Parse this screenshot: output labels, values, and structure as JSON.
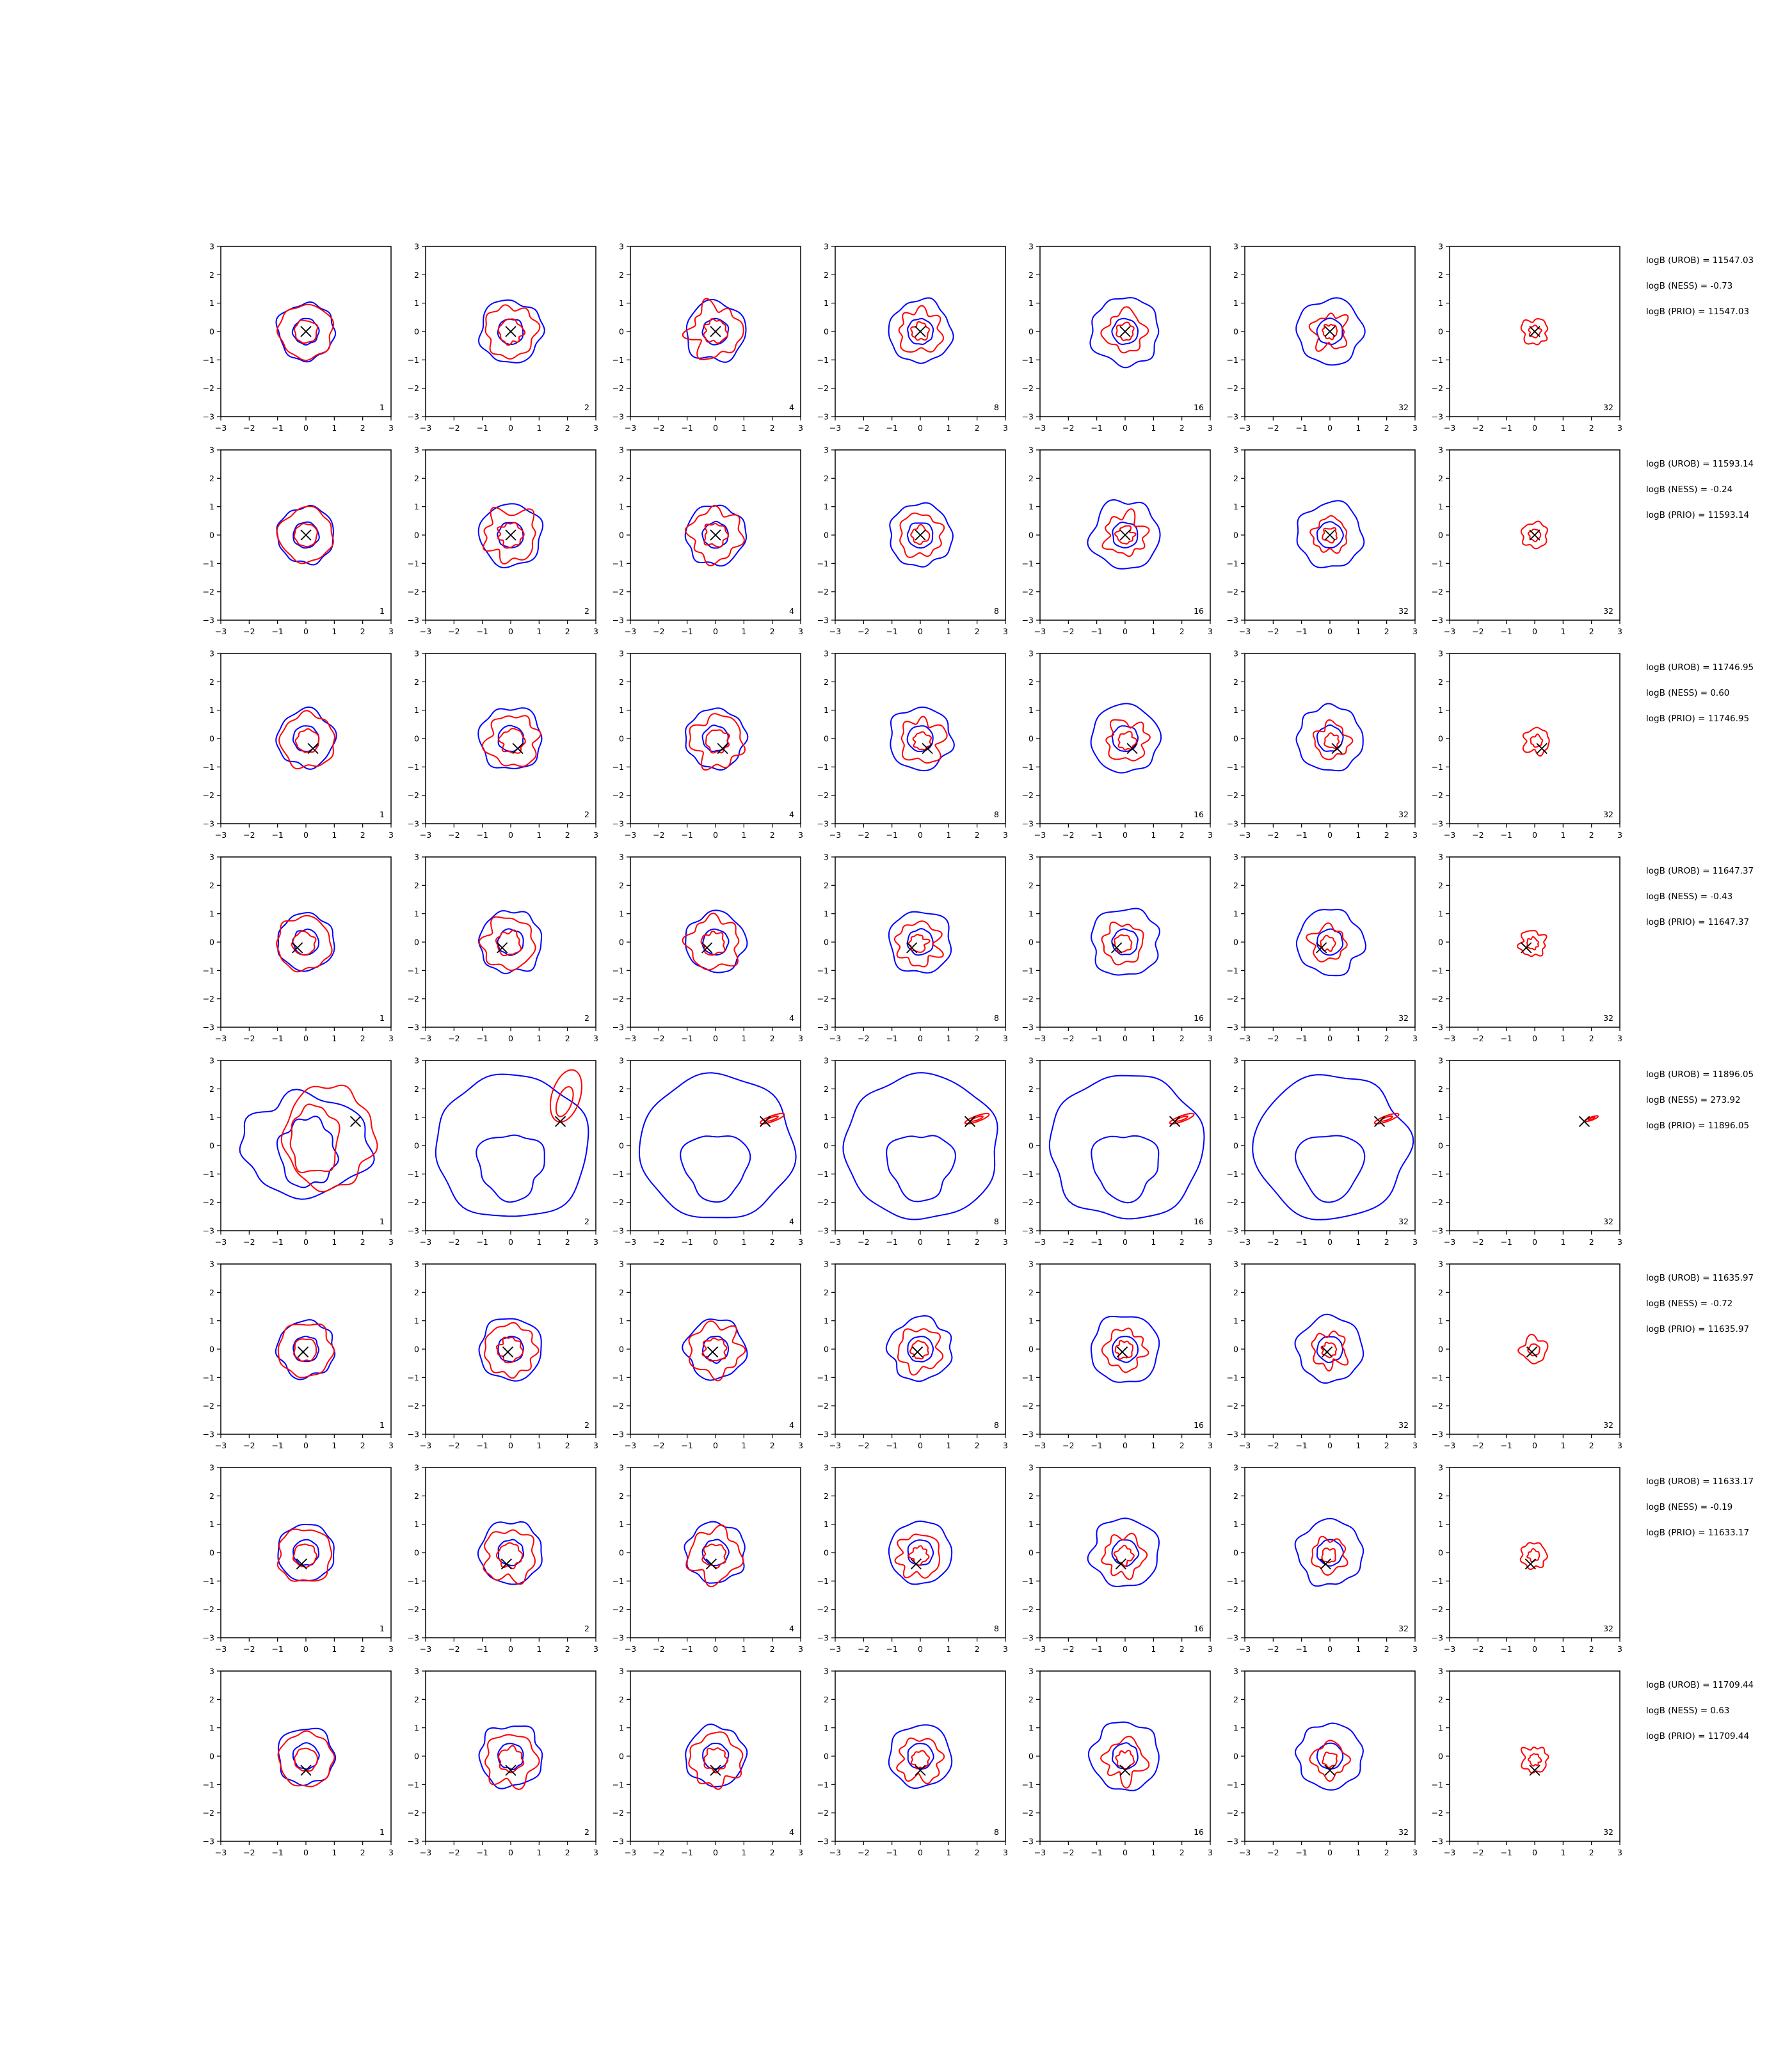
{
  "chart_data": {
    "type": "contour-grid",
    "axis": {
      "xlim": [
        -3,
        3
      ],
      "ylim": [
        -3,
        3
      ],
      "ticks": [
        -3,
        -2,
        -1,
        0,
        1,
        2,
        3
      ],
      "tick_labels": [
        "−3",
        "−2",
        "−1",
        "0",
        "1",
        "2",
        "3"
      ]
    },
    "colors": {
      "reference": "#0000ff",
      "estimate": "#ff0000",
      "truth_marker": "#000000"
    },
    "column_labels": [
      "1",
      "2",
      "4",
      "8",
      "16",
      "32",
      "32"
    ],
    "rows": [
      {
        "truth": [
          0.0,
          0.0
        ],
        "stats": [
          "logB (UROB) = 11547.03",
          "logB (NESS) = -0.73",
          "logB (PRIO) = 11547.03"
        ]
      },
      {
        "truth": [
          0.0,
          0.0
        ],
        "stats": [
          "logB (UROB) = 11593.14",
          "logB (NESS) = -0.24",
          "logB (PRIO) = 11593.14"
        ]
      },
      {
        "truth": [
          0.25,
          -0.35
        ],
        "stats": [
          "logB (UROB) = 11746.95",
          "logB (NESS) = 0.60",
          "logB (PRIO) = 11746.95"
        ]
      },
      {
        "truth": [
          -0.3,
          -0.2
        ],
        "stats": [
          "logB (UROB) = 11647.37",
          "logB (NESS) = -0.43",
          "logB (PRIO) = 11647.37"
        ]
      },
      {
        "truth": [
          1.75,
          0.85
        ],
        "stats": [
          "logB (UROB) = 11896.05",
          "logB (NESS) = 273.92",
          "logB (PRIO) = 11896.05"
        ]
      },
      {
        "truth": [
          -0.1,
          -0.1
        ],
        "stats": [
          "logB (UROB) = 11635.97",
          "logB (NESS) = -0.72",
          "logB (PRIO) = 11635.97"
        ]
      },
      {
        "truth": [
          -0.15,
          -0.4
        ],
        "stats": [
          "logB (UROB) = 11633.17",
          "logB (NESS) = -0.19",
          "logB (PRIO) = 11633.17"
        ]
      },
      {
        "truth": [
          0.0,
          -0.5
        ],
        "stats": [
          "logB (UROB) = 11709.44",
          "logB (NESS) = 0.63",
          "logB (PRIO) = 11709.44"
        ]
      }
    ]
  }
}
